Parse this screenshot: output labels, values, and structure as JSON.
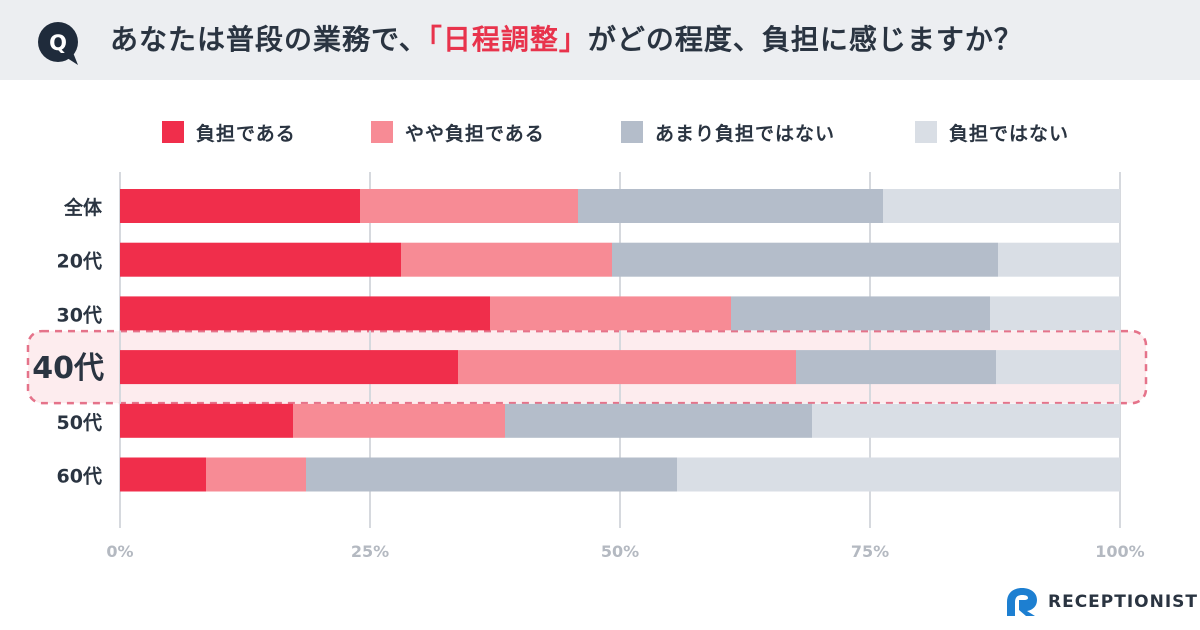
{
  "header": {
    "badge": "Q",
    "title_pre": "あなたは普段の業務で、",
    "title_highlight": "「日程調整」",
    "title_post": "がどの程度、負担に感じますか？"
  },
  "colors": {
    "header_bg": "#eceef1",
    "badge_bg": "#1f2b3b",
    "highlight_text": "#e8334c",
    "highlight_row_bg": "#fdecee",
    "highlight_row_border": "#e5738a",
    "gridline": "#d6d9de",
    "tick_text": "#b4b9c1",
    "label_text": "#2a3441"
  },
  "chart_data": {
    "type": "bar",
    "orientation": "horizontal",
    "stacked": true,
    "normalized": true,
    "categories": [
      "全体",
      "20代",
      "30代",
      "40代",
      "50代",
      "60代"
    ],
    "highlighted_category": "40代",
    "series": [
      {
        "name": "負担である",
        "color": "#f02e4b",
        "values": [
          24.0,
          28.1,
          37.0,
          33.8,
          17.3,
          8.6
        ]
      },
      {
        "name": "やや負担である",
        "color": "#f78b95",
        "values": [
          21.8,
          21.1,
          24.1,
          33.8,
          21.2,
          10.0
        ]
      },
      {
        "name": "あまり負担ではない",
        "color": "#b4bdca",
        "values": [
          30.5,
          38.6,
          25.9,
          20.0,
          30.7,
          37.1
        ]
      },
      {
        "name": "負担ではない",
        "color": "#d9dee5",
        "values": [
          23.7,
          12.2,
          13.0,
          12.4,
          30.8,
          44.3
        ]
      }
    ],
    "x_ticks": [
      "0%",
      "25%",
      "50%",
      "75%",
      "100%"
    ],
    "xlim": [
      0,
      100
    ],
    "grid": true,
    "legend": "top"
  },
  "brand": {
    "name": "RECEPTIONIST"
  }
}
